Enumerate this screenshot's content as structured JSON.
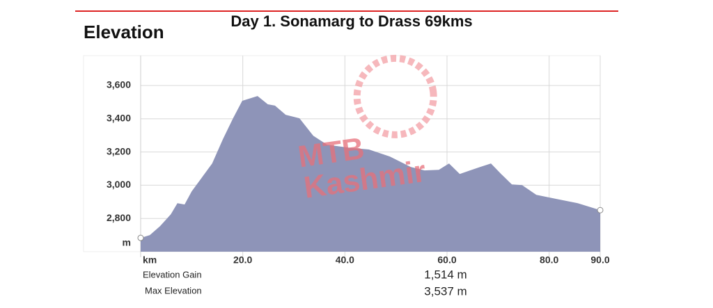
{
  "chart_data": {
    "type": "area",
    "heading": "Elevation",
    "title": "Day 1. Sonamarg to Drass 69kms",
    "xlabel": "km",
    "ylabel": "m",
    "watermark": [
      "MTB",
      "Kashmir"
    ],
    "x": [
      0,
      1.8,
      3.8,
      5.9,
      7.2,
      8.6,
      10,
      12,
      14,
      16.1,
      18.1,
      19.9,
      22.9,
      24.9,
      26.3,
      28.4,
      31.1,
      33.8,
      36.5,
      40.6,
      44.7,
      48.8,
      52.9,
      55.6,
      58.4,
      60.4,
      62.5,
      64.5,
      66.5,
      68.6,
      70.6,
      72.7,
      74.7,
      77.5,
      81.5,
      85.6,
      90
    ],
    "values": [
      2683,
      2700,
      2754,
      2825,
      2892,
      2884,
      2963,
      3047,
      3131,
      3277,
      3403,
      3508,
      3537,
      3487,
      3479,
      3424,
      3403,
      3298,
      3244,
      3227,
      3215,
      3173,
      3110,
      3089,
      3093,
      3131,
      3068,
      3089,
      3110,
      3131,
      3068,
      3005,
      3001,
      2942,
      2917,
      2892,
      2850
    ],
    "color": "#8e94b8",
    "xlim": [
      0,
      90
    ],
    "ylim": [
      2600,
      3780
    ],
    "xticks": [
      {
        "value": 20,
        "label": "20.0"
      },
      {
        "value": 40,
        "label": "40.0"
      },
      {
        "value": 60,
        "label": "60.0"
      },
      {
        "value": 80,
        "label": "80.0"
      },
      {
        "value": 90,
        "label": "90.0"
      }
    ],
    "yticks": [
      {
        "value": 2800,
        "label": "2,800"
      },
      {
        "value": 3000,
        "label": "3,000"
      },
      {
        "value": 3200,
        "label": "3,200"
      },
      {
        "value": 3400,
        "label": "3,400"
      },
      {
        "value": 3600,
        "label": "3,600"
      }
    ],
    "grid": true,
    "stats": [
      {
        "label": "Elevation Gain",
        "value": "1,514 m"
      },
      {
        "label": "Max Elevation",
        "value": "3,537 m"
      }
    ]
  }
}
